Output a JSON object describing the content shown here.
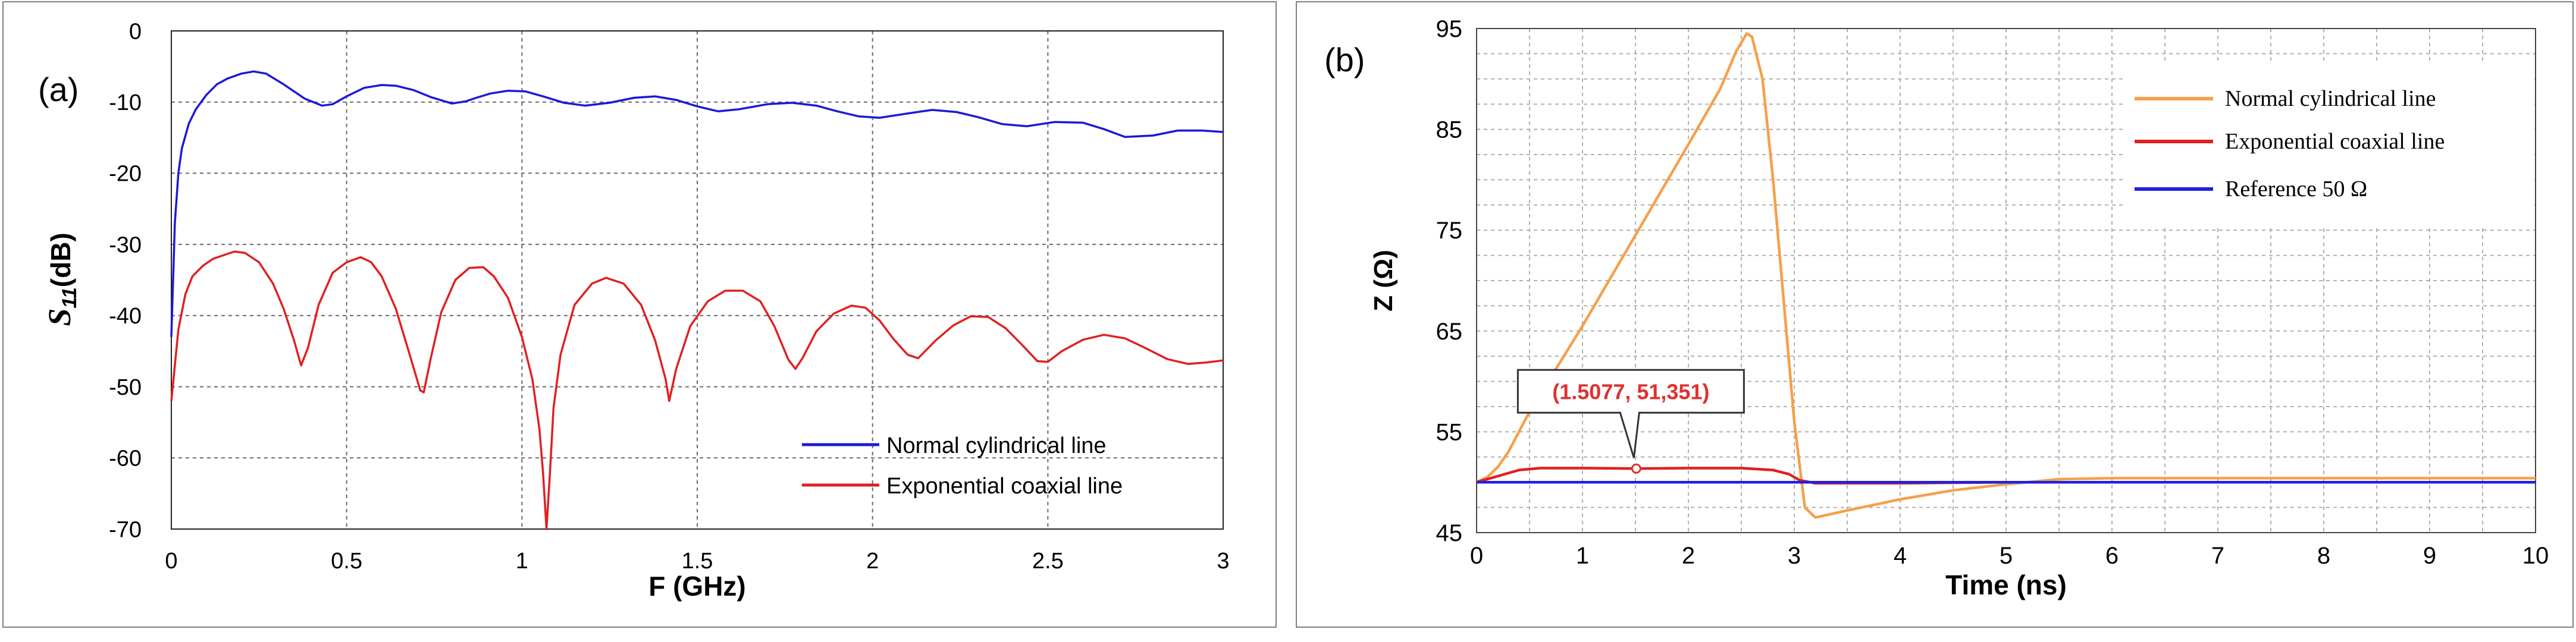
{
  "chart_data": [
    {
      "type": "line",
      "panel_label": "(a)",
      "xlabel": "F (GHz)",
      "ylabel_main": "S",
      "ylabel_sub": "11",
      "ylabel_unit": "(dB)",
      "xlim": [
        0,
        3
      ],
      "ylim": [
        -70,
        0
      ],
      "grid": true,
      "xticks": [
        0,
        0.5,
        1,
        1.5,
        2,
        2.5,
        3
      ],
      "xtick_labels": [
        "0",
        "0.5",
        "1",
        "1.5",
        "2",
        "2.5",
        "3"
      ],
      "yticks": [
        0,
        -10,
        -20,
        -30,
        -40,
        -50,
        -60,
        -70
      ],
      "ytick_labels": [
        "0",
        "-10",
        "-20",
        "-30",
        "-40",
        "-50",
        "-60",
        "-70"
      ],
      "legend": {
        "placement": "lower-right",
        "entries": [
          {
            "label": "Normal cylindrical line",
            "color": "#1a1ad9"
          },
          {
            "label": "Exponential coaxial line",
            "color": "#e02020"
          }
        ]
      },
      "series": [
        {
          "name": "Normal cylindrical line",
          "color": "#1a1ad9",
          "x": [
            0,
            0.01,
            0.02,
            0.03,
            0.05,
            0.07,
            0.1,
            0.13,
            0.16,
            0.2,
            0.235,
            0.27,
            0.32,
            0.38,
            0.43,
            0.46,
            0.5,
            0.55,
            0.6,
            0.64,
            0.69,
            0.74,
            0.8,
            0.84,
            0.87,
            0.91,
            0.96,
            1.01,
            1.06,
            1.12,
            1.18,
            1.25,
            1.32,
            1.38,
            1.44,
            1.5,
            1.56,
            1.62,
            1.7,
            1.77,
            1.84,
            1.9,
            1.96,
            2.02,
            2.1,
            2.17,
            2.24,
            2.3,
            2.37,
            2.44,
            2.52,
            2.6,
            2.66,
            2.72,
            2.8,
            2.87,
            2.94,
            3.0
          ],
          "y": [
            -43,
            -27,
            -20,
            -16.5,
            -13,
            -11,
            -9,
            -7.5,
            -6.7,
            -6,
            -5.7,
            -6,
            -7.5,
            -9.5,
            -10.5,
            -10.3,
            -9.2,
            -8,
            -7.6,
            -7.7,
            -8.3,
            -9.3,
            -10.2,
            -9.9,
            -9.4,
            -8.8,
            -8.4,
            -8.5,
            -9.2,
            -10.1,
            -10.5,
            -10.1,
            -9.4,
            -9.2,
            -9.7,
            -10.6,
            -11.3,
            -11,
            -10.3,
            -10.1,
            -10.5,
            -11.3,
            -12,
            -12.2,
            -11.6,
            -11.1,
            -11.4,
            -12.1,
            -13.1,
            -13.4,
            -12.8,
            -12.9,
            -13.8,
            -14.9,
            -14.7,
            -14,
            -14,
            -14.2
          ]
        },
        {
          "name": "Exponential coaxial line",
          "color": "#e02020",
          "x": [
            0,
            0.01,
            0.02,
            0.04,
            0.06,
            0.09,
            0.12,
            0.15,
            0.18,
            0.21,
            0.25,
            0.29,
            0.32,
            0.35,
            0.37,
            0.39,
            0.42,
            0.46,
            0.5,
            0.54,
            0.57,
            0.6,
            0.64,
            0.68,
            0.71,
            0.72,
            0.74,
            0.77,
            0.81,
            0.85,
            0.89,
            0.92,
            0.96,
            1.0,
            1.03,
            1.05,
            1.06,
            1.07,
            1.08,
            1.09,
            1.11,
            1.15,
            1.2,
            1.24,
            1.29,
            1.34,
            1.38,
            1.41,
            1.42,
            1.44,
            1.48,
            1.53,
            1.58,
            1.63,
            1.68,
            1.72,
            1.76,
            1.78,
            1.8,
            1.84,
            1.89,
            1.94,
            1.98,
            2.02,
            2.06,
            2.1,
            2.13,
            2.15,
            2.18,
            2.23,
            2.28,
            2.33,
            2.38,
            2.43,
            2.47,
            2.5,
            2.54,
            2.6,
            2.66,
            2.72,
            2.78,
            2.84,
            2.9,
            2.95,
            3.0
          ],
          "y": [
            -52,
            -47,
            -42,
            -37,
            -34.5,
            -33,
            -32,
            -31.5,
            -31,
            -31.2,
            -32.5,
            -35.5,
            -39,
            -43.5,
            -47,
            -44.5,
            -38.5,
            -34,
            -32.5,
            -31.8,
            -32.5,
            -34.5,
            -39,
            -45.5,
            -50.5,
            -50.8,
            -46,
            -39.5,
            -35,
            -33.3,
            -33.2,
            -34.5,
            -37.5,
            -43,
            -49,
            -56,
            -62,
            -70,
            -62,
            -53,
            -45.5,
            -38.5,
            -35.5,
            -34.7,
            -35.5,
            -38.5,
            -43.5,
            -49,
            -52,
            -47.5,
            -41.5,
            -38,
            -36.5,
            -36.5,
            -38,
            -41.5,
            -46.2,
            -47.5,
            -46,
            -42.2,
            -39.7,
            -38.6,
            -38.9,
            -40.7,
            -43.3,
            -45.5,
            -46,
            -45,
            -43.5,
            -41.4,
            -40.1,
            -40.2,
            -41.8,
            -44.3,
            -46.4,
            -46.5,
            -45,
            -43.4,
            -42.7,
            -43.2,
            -44.6,
            -46.1,
            -46.8,
            -46.6,
            -46.3
          ]
        }
      ]
    },
    {
      "type": "line",
      "panel_label": "(b)",
      "xlabel": "Time (ns)",
      "ylabel": "Z (Ω)",
      "xlim": [
        0,
        10
      ],
      "ylim": [
        45,
        95
      ],
      "grid": true,
      "xticks": [
        0,
        1,
        2,
        3,
        4,
        5,
        6,
        7,
        8,
        9,
        10
      ],
      "xtick_labels": [
        "0",
        "1",
        "2",
        "3",
        "4",
        "5",
        "6",
        "7",
        "8",
        "9",
        "10"
      ],
      "yticks": [
        45,
        55,
        65,
        75,
        85,
        95
      ],
      "ytick_labels": [
        "45",
        "55",
        "65",
        "75",
        "85",
        "95"
      ],
      "legend": {
        "placement": "top-right",
        "entries": [
          {
            "label": "Normal cylindrical line",
            "color": "#f5a04a"
          },
          {
            "label": "Exponential coaxial line",
            "color": "#e02020"
          },
          {
            "label": "Reference 50 Ω",
            "color": "#2020e0"
          }
        ]
      },
      "annotation": {
        "text": "(1.5077, 51,351)",
        "x": 1.5077,
        "y": 51.351,
        "color": "#e03030"
      },
      "series": [
        {
          "name": "Normal cylindrical line",
          "color": "#f5a04a",
          "x": [
            0,
            0.1,
            0.2,
            0.3,
            0.5,
            1.0,
            1.5,
            2.0,
            2.3,
            2.45,
            2.55,
            2.6,
            2.7,
            2.8,
            2.9,
            3.0,
            3.1,
            3.2,
            3.5,
            4.0,
            4.5,
            5.0,
            5.5,
            6.0,
            7.0,
            8.0,
            9.0,
            10.0
          ],
          "y": [
            50,
            50.5,
            51.5,
            53,
            57,
            65.5,
            74.5,
            83.5,
            89,
            92.7,
            94.5,
            94.2,
            90,
            80,
            68,
            56,
            47.5,
            46.5,
            47.2,
            48.3,
            49.2,
            49.8,
            50.3,
            50.4,
            50.4,
            50.4,
            50.4,
            50.4
          ]
        },
        {
          "name": "Exponential coaxial line",
          "color": "#e02020",
          "x": [
            0,
            0.2,
            0.4,
            0.6,
            1.0,
            1.5077,
            2.0,
            2.5,
            2.8,
            2.95,
            3.05,
            3.2,
            3.5,
            4.0,
            5.0,
            6.0,
            7.0,
            8.0,
            9.0,
            10.0
          ],
          "y": [
            50,
            50.6,
            51.2,
            51.4,
            51.4,
            51.35,
            51.4,
            51.4,
            51.2,
            50.8,
            50.2,
            49.9,
            49.9,
            49.9,
            50.0,
            50.0,
            50.0,
            50.0,
            50.0,
            50.0
          ]
        },
        {
          "name": "Reference 50 Ω",
          "color": "#2020e0",
          "x": [
            0,
            10
          ],
          "y": [
            50,
            50
          ]
        }
      ]
    }
  ]
}
